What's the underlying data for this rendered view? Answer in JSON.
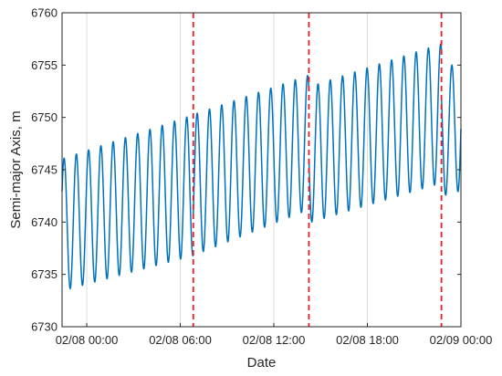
{
  "chart_data": {
    "type": "line",
    "xlabel": "Date",
    "ylabel": "Semi-major Axis, m",
    "ylim": [
      6730,
      6760
    ],
    "xlim": [
      "2020-02-07T22:25",
      "2020-02-09T00:00"
    ],
    "yticks": [
      6730,
      6735,
      6740,
      6745,
      6750,
      6755,
      6760
    ],
    "xticks": [
      {
        "t": "2020-02-08T00:00",
        "label": "02/08 00:00"
      },
      {
        "t": "2020-02-08T06:00",
        "label": "02/08 06:00"
      },
      {
        "t": "2020-02-08T12:00",
        "label": "02/08 12:00"
      },
      {
        "t": "2020-02-08T18:00",
        "label": "02/08 18:00"
      },
      {
        "t": "2020-02-09T00:00",
        "label": "02/09 00:00"
      }
    ],
    "grid": "vertical",
    "oscillation_period_minutes": 47.2,
    "series": [
      {
        "color": "#0072BD",
        "segments": [
          {
            "start": "2020-02-07T22:25",
            "end": "2020-02-08T06:50",
            "max": [
              [
                "2020-02-07T23:20",
                6746.5
              ],
              [
                "2020-02-08T06:20",
                6750.0
              ]
            ],
            "min": [
              [
                "2020-02-07T22:35",
                6733.5
              ],
              [
                "2020-02-08T06:50",
                6736.8
              ]
            ]
          },
          {
            "start": "2020-02-08T06:50",
            "end": "2020-02-08T14:15",
            "max": [
              [
                "2020-02-08T07:05",
                6750.4
              ],
              [
                "2020-02-08T14:10",
                6754.0
              ]
            ],
            "min": [
              [
                "2020-02-08T06:50",
                6736.8
              ],
              [
                "2020-02-08T13:55",
                6741.0
              ]
            ]
          },
          {
            "start": "2020-02-08T14:15",
            "end": "2020-02-08T22:45",
            "max": [
              [
                "2020-02-08T14:50",
                6753.2
              ],
              [
                "2020-02-08T22:40",
                6757.0
              ]
            ],
            "min": [
              [
                "2020-02-08T14:25",
                6740.0
              ],
              [
                "2020-02-08T22:15",
                6743.5
              ]
            ]
          },
          {
            "start": "2020-02-08T22:45",
            "end": "2020-02-09T00:00",
            "max": [
              [
                "2020-02-08T23:25",
                6755.0
              ],
              [
                "2020-02-09T00:00",
                6755.5
              ]
            ],
            "min": [
              [
                "2020-02-08T22:50",
                6742.5
              ],
              [
                "2020-02-09T00:00",
                6743.0
              ]
            ]
          }
        ]
      }
    ],
    "vlines": {
      "color": "#EE1C25",
      "style": "dashed",
      "times": [
        "2020-02-08T06:50",
        "2020-02-08T14:15",
        "2020-02-08T22:45"
      ]
    }
  }
}
